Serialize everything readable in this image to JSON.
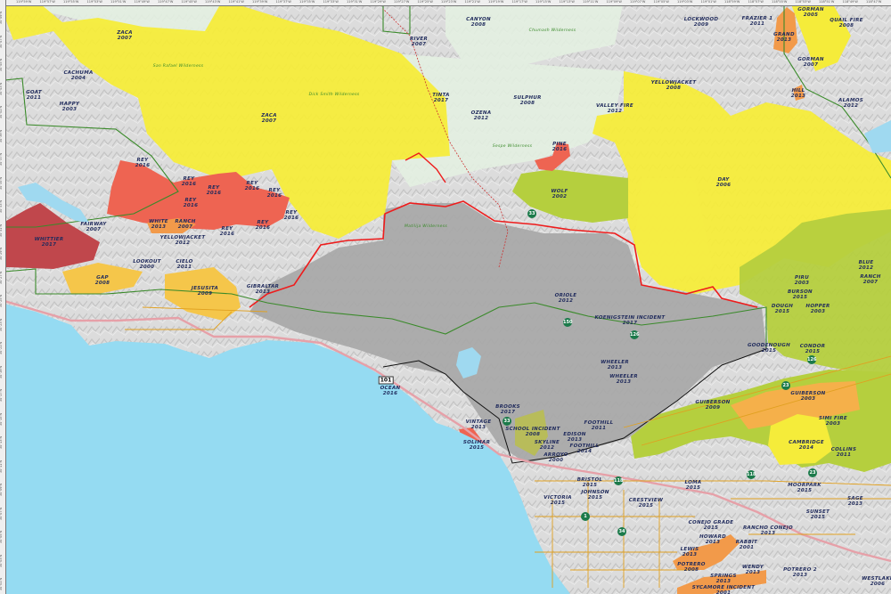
{
  "colors": {
    "ocean": "#95dbf2",
    "terrain": "#d9d9d9",
    "forest": "#e3f0e1",
    "burn_recent_gray": "#a9a9a9",
    "fire_2000s_yellow": "#f5ec3a",
    "fire_green": "#b5cf3e",
    "fire_orange": "#f29a4a",
    "fire_gold": "#f5c64a",
    "fire_red": "#ee6452",
    "fire_darkred": "#c0474c",
    "perimeter_red": "#ee1c1c",
    "boundary_green": "#3a8a2a",
    "roads": "#e0a020",
    "highways": "#e6a0a8"
  },
  "ticks_top": [
    "119°59'W",
    "119°57'W",
    "119°55'W",
    "119°53'W",
    "119°51'W",
    "119°49'W",
    "119°47'W",
    "119°45'W",
    "119°43'W",
    "119°41'W",
    "119°39'W",
    "119°37'W",
    "119°35'W",
    "119°33'W",
    "119°31'W",
    "119°29'W",
    "119°27'W",
    "119°25'W",
    "119°23'W",
    "119°21'W",
    "119°19'W",
    "119°17'W",
    "119°15'W",
    "119°13'W",
    "119°11'W",
    "119°09'W",
    "119°07'W",
    "119°05'W",
    "119°03'W",
    "119°01'W",
    "118°59'W",
    "118°57'W",
    "118°55'W",
    "118°53'W",
    "118°51'W",
    "118°49'W",
    "118°47'W"
  ],
  "ticks_left": [
    "34°49'N",
    "34°47'N",
    "34°45'N",
    "34°43'N",
    "34°41'N",
    "34°39'N",
    "34°37'N",
    "34°35'N",
    "34°33'N",
    "34°31'N",
    "34°29'N",
    "34°27'N",
    "34°25'N",
    "34°23'N",
    "34°21'N",
    "34°19'N",
    "34°17'N",
    "34°15'N",
    "34°13'N",
    "34°11'N",
    "34°09'N",
    "34°07'N",
    "34°05'N",
    "34°03'N",
    "34°01'N"
  ],
  "wilderness": [
    "San Rafael Wilderness",
    "Dick Smith Wilderness",
    "Chumash Wilderness",
    "Sespe Wilderness",
    "Matilija Wilderness"
  ],
  "highways": [
    "33",
    "33",
    "126",
    "101",
    "150",
    "118",
    "118",
    "23",
    "23",
    "1",
    "34",
    "126"
  ],
  "fires": [
    {
      "name": "ZACA",
      "year": "2007",
      "color": "yellow"
    },
    {
      "name": "CACHUMA",
      "year": "2004",
      "color": "yellow"
    },
    {
      "name": "GOAT",
      "year": "2011",
      "color": "none"
    },
    {
      "name": "HAPPY",
      "year": "2003",
      "color": "yellow"
    },
    {
      "name": "ZACA",
      "year": "2007",
      "color": "yellow"
    },
    {
      "name": "REY",
      "year": "2016",
      "color": "red"
    },
    {
      "name": "REY",
      "year": "2016",
      "color": "red"
    },
    {
      "name": "REY",
      "year": "2016",
      "color": "red"
    },
    {
      "name": "REY",
      "year": "2016",
      "color": "red"
    },
    {
      "name": "REY",
      "year": "2016",
      "color": "red"
    },
    {
      "name": "REY",
      "year": "2016",
      "color": "red"
    },
    {
      "name": "REY",
      "year": "2016",
      "color": "red"
    },
    {
      "name": "REY",
      "year": "2016",
      "color": "red"
    },
    {
      "name": "REY",
      "year": "2016",
      "color": "red"
    },
    {
      "name": "WHITE",
      "year": "2013",
      "color": "orange"
    },
    {
      "name": "RANCH",
      "year": "2007",
      "color": "orange"
    },
    {
      "name": "YELLOWJACKET",
      "year": "2012",
      "color": "none"
    },
    {
      "name": "FAIRWAY",
      "year": "2007",
      "color": "none"
    },
    {
      "name": "WHITTIER",
      "year": "2017",
      "color": "darkred"
    },
    {
      "name": "GAP",
      "year": "2008",
      "color": "gold"
    },
    {
      "name": "LOOKOUT",
      "year": "2000",
      "color": "none"
    },
    {
      "name": "CIELO",
      "year": "2011",
      "color": "none"
    },
    {
      "name": "JESUSITA",
      "year": "2009",
      "color": "gold"
    },
    {
      "name": "GIBRALTAR",
      "year": "2013",
      "color": "none"
    },
    {
      "name": "RIVER",
      "year": "2007",
      "color": "none"
    },
    {
      "name": "TINTA",
      "year": "2017",
      "color": "yellow"
    },
    {
      "name": "CANYON",
      "year": "2008",
      "color": "none"
    },
    {
      "name": "SULPHUR",
      "year": "2008",
      "color": "gold"
    },
    {
      "name": "OZENA",
      "year": "2012",
      "color": "orange"
    },
    {
      "name": "PINE",
      "year": "2016",
      "color": "red"
    },
    {
      "name": "WOLF",
      "year": "2002",
      "color": "green"
    },
    {
      "name": "VALLEY FIRE",
      "year": "2012",
      "color": "none"
    },
    {
      "name": "YELLOWJACKET",
      "year": "2008",
      "color": "yellow"
    },
    {
      "name": "LOCKWOOD",
      "year": "2009",
      "color": "none"
    },
    {
      "name": "FRAZIER 1",
      "year": "2011",
      "color": "none"
    },
    {
      "name": "GRAND",
      "year": "2013",
      "color": "orange"
    },
    {
      "name": "GORMAN",
      "year": "2005",
      "color": "yellow"
    },
    {
      "name": "GORMAN",
      "year": "2007",
      "color": "yellow"
    },
    {
      "name": "QUAIL FIRE",
      "year": "2008",
      "color": "yellow"
    },
    {
      "name": "HILL",
      "year": "2013",
      "color": "orange"
    },
    {
      "name": "ALAMOS",
      "year": "2012",
      "color": "none"
    },
    {
      "name": "DAY",
      "year": "2006",
      "color": "yellow"
    },
    {
      "name": "PIRU",
      "year": "2003",
      "color": "green"
    },
    {
      "name": "BURSON",
      "year": "2015",
      "color": "green"
    },
    {
      "name": "DOUGH",
      "year": "2015",
      "color": "green"
    },
    {
      "name": "HOPPER",
      "year": "2003",
      "color": "green"
    },
    {
      "name": "BLUE",
      "year": "2012",
      "color": "yellow"
    },
    {
      "name": "RANCH",
      "year": "2007",
      "color": "green"
    },
    {
      "name": "GOODENOUGH",
      "year": "2015",
      "color": "none"
    },
    {
      "name": "CONDOR",
      "year": "2015",
      "color": "green"
    },
    {
      "name": "ORIOLE",
      "year": "2012",
      "color": "none"
    },
    {
      "name": "KOENIGSTEIN INCIDENT",
      "year": "2017",
      "color": "gray"
    },
    {
      "name": "WHEELER",
      "year": "2013",
      "color": "gray"
    },
    {
      "name": "WHEELER",
      "year": "2013",
      "color": "gray"
    },
    {
      "name": "OCEAN",
      "year": "2016",
      "color": "none"
    },
    {
      "name": "BROOKS",
      "year": "2017",
      "color": "none"
    },
    {
      "name": "VINTAGE",
      "year": "2013",
      "color": "none"
    },
    {
      "name": "SOLIMAR",
      "year": "2015",
      "color": "red"
    },
    {
      "name": "SCHOOL INCIDENT",
      "year": "2008",
      "color": "olive"
    },
    {
      "name": "FOOTHILL",
      "year": "2011",
      "color": "gray"
    },
    {
      "name": "EDISON",
      "year": "2013",
      "color": "gray"
    },
    {
      "name": "SKYLINE",
      "year": "2012",
      "color": "gray"
    },
    {
      "name": "FOOTHILL",
      "year": "2014",
      "color": "gray"
    },
    {
      "name": "ARROYO",
      "year": "2000",
      "color": "gray"
    },
    {
      "name": "GUIBERSON",
      "year": "2003",
      "color": "orange"
    },
    {
      "name": "GUIBERSON",
      "year": "2009",
      "color": "green"
    },
    {
      "name": "SIMI FIRE",
      "year": "2003",
      "color": "green"
    },
    {
      "name": "CAMBRIDGE",
      "year": "2014",
      "color": "yellow"
    },
    {
      "name": "COLLINS",
      "year": "2011",
      "color": "none"
    },
    {
      "name": "BRISTOL",
      "year": "2015",
      "color": "none"
    },
    {
      "name": "JOHNSON",
      "year": "2015",
      "color": "none"
    },
    {
      "name": "VICTORIA",
      "year": "2015",
      "color": "none"
    },
    {
      "name": "CRESTVIEW",
      "year": "2015",
      "color": "none"
    },
    {
      "name": "LOMA",
      "year": "2015",
      "color": "none"
    },
    {
      "name": "MOORPARK",
      "year": "2015",
      "color": "none"
    },
    {
      "name": "CONEJO GRADE",
      "year": "2015",
      "color": "none"
    },
    {
      "name": "HOWARD",
      "year": "2013",
      "color": "orange"
    },
    {
      "name": "LEWIS",
      "year": "2013",
      "color": "orange"
    },
    {
      "name": "POTRERO",
      "year": "2008",
      "color": "orange"
    },
    {
      "name": "WENDY",
      "year": "2013",
      "color": "none"
    },
    {
      "name": "SPRINGS",
      "year": "2013",
      "color": "orange"
    },
    {
      "name": "SYCAMORE INCIDENT",
      "year": "2001",
      "color": "orange"
    },
    {
      "name": "RABBIT",
      "year": "2001",
      "color": "none"
    },
    {
      "name": "RANCHO CONEJO",
      "year": "2013",
      "color": "none"
    },
    {
      "name": "SUNSET",
      "year": "2015",
      "color": "none"
    },
    {
      "name": "SAGE",
      "year": "2013",
      "color": "none"
    },
    {
      "name": "POTRERO 2",
      "year": "2013",
      "color": "none"
    },
    {
      "name": "WESTLAKE",
      "year": "2006",
      "color": "none"
    }
  ]
}
